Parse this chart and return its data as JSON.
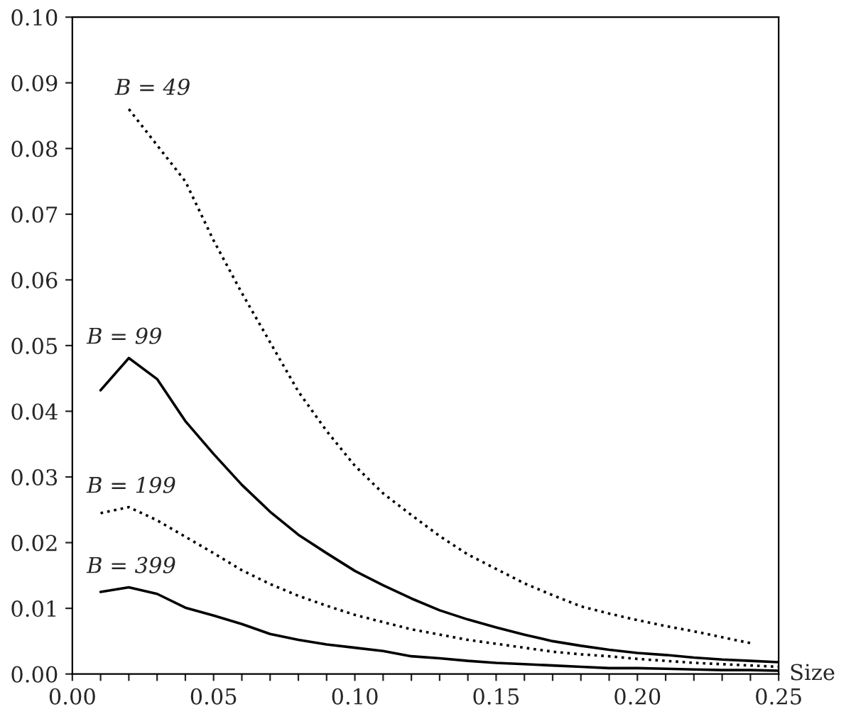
{
  "chart_data": {
    "type": "line",
    "xlabel": "Size",
    "xlim": [
      0.0,
      0.25
    ],
    "ylim": [
      0.0,
      0.1
    ],
    "xticks": [
      {
        "value": 0.0,
        "label": "0.00"
      },
      {
        "value": 0.01,
        "label": null
      },
      {
        "value": 0.02,
        "label": null
      },
      {
        "value": 0.03,
        "label": null
      },
      {
        "value": 0.04,
        "label": null
      },
      {
        "value": 0.05,
        "label": "0.05"
      },
      {
        "value": 0.06,
        "label": null
      },
      {
        "value": 0.07,
        "label": null
      },
      {
        "value": 0.08,
        "label": null
      },
      {
        "value": 0.09,
        "label": null
      },
      {
        "value": 0.1,
        "label": "0.10"
      },
      {
        "value": 0.11,
        "label": null
      },
      {
        "value": 0.12,
        "label": null
      },
      {
        "value": 0.13,
        "label": null
      },
      {
        "value": 0.14,
        "label": null
      },
      {
        "value": 0.15,
        "label": "0.15"
      },
      {
        "value": 0.16,
        "label": null
      },
      {
        "value": 0.17,
        "label": null
      },
      {
        "value": 0.18,
        "label": null
      },
      {
        "value": 0.19,
        "label": null
      },
      {
        "value": 0.2,
        "label": "0.20"
      },
      {
        "value": 0.21,
        "label": null
      },
      {
        "value": 0.22,
        "label": null
      },
      {
        "value": 0.23,
        "label": null
      },
      {
        "value": 0.24,
        "label": null
      },
      {
        "value": 0.25,
        "label": "0.25"
      }
    ],
    "yticks": [
      {
        "value": 0.0,
        "label": "0.00"
      },
      {
        "value": 0.01,
        "label": "0.01"
      },
      {
        "value": 0.02,
        "label": "0.02"
      },
      {
        "value": 0.03,
        "label": "0.03"
      },
      {
        "value": 0.04,
        "label": "0.04"
      },
      {
        "value": 0.05,
        "label": "0.05"
      },
      {
        "value": 0.06,
        "label": "0.06"
      },
      {
        "value": 0.07,
        "label": "0.07"
      },
      {
        "value": 0.08,
        "label": "0.08"
      },
      {
        "value": 0.09,
        "label": "0.09"
      },
      {
        "value": 0.1,
        "label": "0.10"
      }
    ],
    "grid": false,
    "legend": false,
    "marker": "none",
    "series": [
      {
        "name": "B = 49",
        "color": "#000000",
        "line_style": "dotted",
        "x": [
          0.02,
          0.03,
          0.04,
          0.05,
          0.06,
          0.07,
          0.08,
          0.09,
          0.1,
          0.11,
          0.12,
          0.13,
          0.14,
          0.15,
          0.16,
          0.17,
          0.18,
          0.19,
          0.2,
          0.21,
          0.22,
          0.23,
          0.24
        ],
        "values": [
          0.086,
          0.0805,
          0.075,
          0.066,
          0.058,
          0.0505,
          0.043,
          0.037,
          0.0317,
          0.0275,
          0.0242,
          0.021,
          0.0182,
          0.016,
          0.0138,
          0.012,
          0.0103,
          0.0092,
          0.0082,
          0.0073,
          0.0065,
          0.0056,
          0.0047
        ]
      },
      {
        "name": "B = 99",
        "color": "#000000",
        "line_style": "solid",
        "x": [
          0.01,
          0.02,
          0.03,
          0.04,
          0.05,
          0.06,
          0.07,
          0.08,
          0.09,
          0.1,
          0.11,
          0.12,
          0.13,
          0.14,
          0.15,
          0.16,
          0.17,
          0.18,
          0.19,
          0.2,
          0.21,
          0.22,
          0.23,
          0.24,
          0.25
        ],
        "values": [
          0.0432,
          0.0481,
          0.0449,
          0.0385,
          0.0335,
          0.0288,
          0.0247,
          0.0212,
          0.0184,
          0.0157,
          0.0135,
          0.0115,
          0.0097,
          0.0083,
          0.0071,
          0.006,
          0.005,
          0.0043,
          0.0037,
          0.0032,
          0.0029,
          0.0025,
          0.0022,
          0.002,
          0.0018
        ]
      },
      {
        "name": "B = 199",
        "color": "#000000",
        "line_style": "dotted",
        "x": [
          0.01,
          0.02,
          0.03,
          0.04,
          0.05,
          0.06,
          0.07,
          0.08,
          0.09,
          0.1,
          0.11,
          0.12,
          0.13,
          0.14,
          0.15,
          0.16,
          0.17,
          0.18,
          0.19,
          0.2,
          0.21,
          0.22,
          0.23,
          0.24,
          0.25
        ],
        "values": [
          0.0245,
          0.0254,
          0.0234,
          0.0209,
          0.0184,
          0.0158,
          0.0137,
          0.0119,
          0.0104,
          0.009,
          0.0079,
          0.0068,
          0.006,
          0.0052,
          0.0046,
          0.004,
          0.0034,
          0.003,
          0.0027,
          0.0023,
          0.002,
          0.0017,
          0.0015,
          0.0013,
          0.0011
        ]
      },
      {
        "name": "B = 399",
        "color": "#000000",
        "line_style": "solid",
        "x": [
          0.01,
          0.02,
          0.03,
          0.04,
          0.05,
          0.06,
          0.07,
          0.08,
          0.09,
          0.1,
          0.11,
          0.12,
          0.13,
          0.14,
          0.15,
          0.16,
          0.17,
          0.18,
          0.19,
          0.2,
          0.21,
          0.22,
          0.23,
          0.24,
          0.25
        ],
        "values": [
          0.0125,
          0.0132,
          0.0122,
          0.0101,
          0.0089,
          0.0076,
          0.0061,
          0.0052,
          0.0045,
          0.004,
          0.0035,
          0.0027,
          0.0024,
          0.002,
          0.0017,
          0.0015,
          0.0013,
          0.0011,
          0.0009,
          0.0009,
          0.0008,
          0.0007,
          0.0006,
          0.0006,
          0.0005
        ]
      }
    ]
  }
}
